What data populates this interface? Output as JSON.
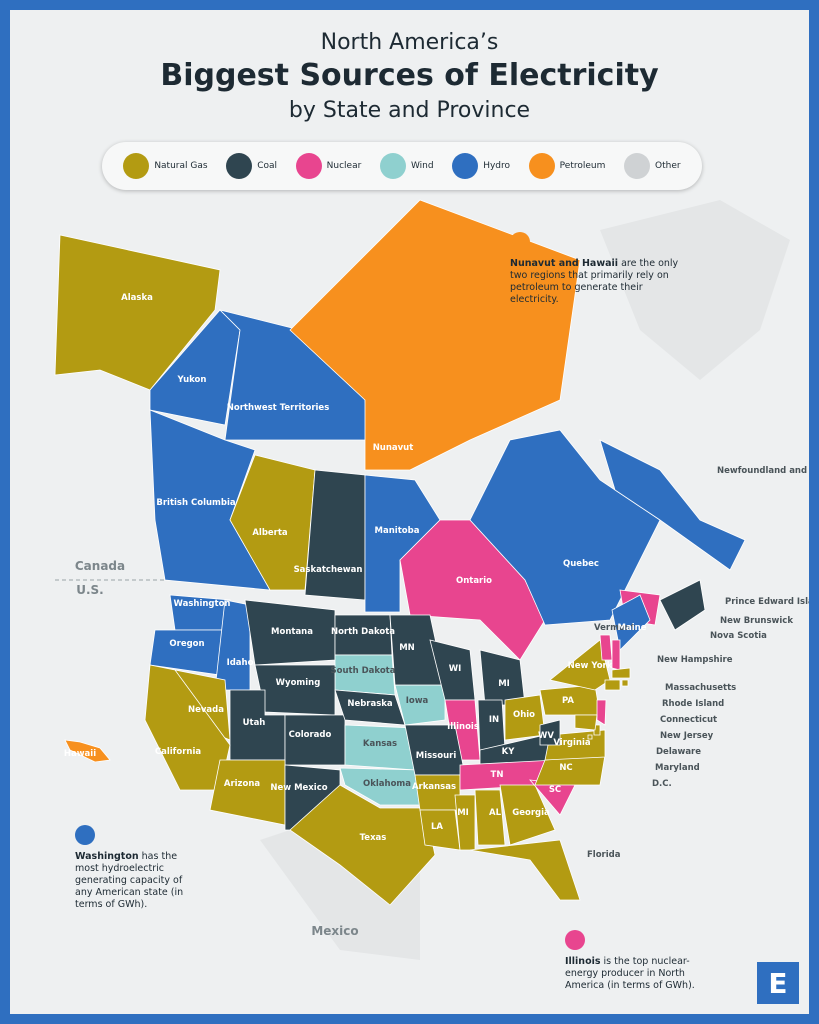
{
  "header": {
    "line1": "North America’s",
    "title": "Biggest Sources of Electricity",
    "line3": "by State and Province"
  },
  "legend": [
    {
      "label": "Natural Gas",
      "color": "#b39b12"
    },
    {
      "label": "Coal",
      "color": "#2f4550"
    },
    {
      "label": "Nuclear",
      "color": "#e8458f"
    },
    {
      "label": "Wind",
      "color": "#8fd0cf"
    },
    {
      "label": "Hydro",
      "color": "#2f6fc0"
    },
    {
      "label": "Petroleum",
      "color": "#f7901e"
    },
    {
      "label": "Other",
      "color": "#cfd2d4"
    }
  ],
  "countries": [
    "Canada",
    "U.S.",
    "Mexico"
  ],
  "regions": [
    {
      "label": "Alaska",
      "source": "Natural Gas"
    },
    {
      "label": "Yukon",
      "source": "Hydro"
    },
    {
      "label": "Northwest Territories",
      "source": "Hydro"
    },
    {
      "label": "Nunavut",
      "source": "Petroleum"
    },
    {
      "label": "British Columbia",
      "source": "Hydro"
    },
    {
      "label": "Alberta",
      "source": "Natural Gas"
    },
    {
      "label": "Saskatchewan",
      "source": "Coal"
    },
    {
      "label": "Manitoba",
      "source": "Hydro"
    },
    {
      "label": "Ontario",
      "source": "Nuclear"
    },
    {
      "label": "Quebec",
      "source": "Hydro"
    },
    {
      "label": "Newfoundland and Labrador",
      "source": "Hydro"
    },
    {
      "label": "Prince Edward Island",
      "source": "Wind"
    },
    {
      "label": "New Brunswick",
      "source": "Nuclear"
    },
    {
      "label": "Nova Scotia",
      "source": "Coal"
    },
    {
      "label": "Washington",
      "source": "Hydro"
    },
    {
      "label": "Oregon",
      "source": "Hydro"
    },
    {
      "label": "Idaho",
      "source": "Hydro"
    },
    {
      "label": "Montana",
      "source": "Coal"
    },
    {
      "label": "North Dakota",
      "source": "Coal"
    },
    {
      "label": "South Dakota",
      "source": "Wind"
    },
    {
      "label": "Wyoming",
      "source": "Coal"
    },
    {
      "label": "Nevada",
      "source": "Natural Gas"
    },
    {
      "label": "Utah",
      "source": "Coal"
    },
    {
      "label": "Colorado",
      "source": "Coal"
    },
    {
      "label": "Nebraska",
      "source": "Coal"
    },
    {
      "label": "Iowa",
      "source": "Wind"
    },
    {
      "label": "Kansas",
      "source": "Wind"
    },
    {
      "label": "California",
      "source": "Natural Gas"
    },
    {
      "label": "Arizona",
      "source": "Natural Gas"
    },
    {
      "label": "New Mexico",
      "source": "Coal"
    },
    {
      "label": "Oklahoma",
      "source": "Wind"
    },
    {
      "label": "Texas",
      "source": "Natural Gas"
    },
    {
      "label": "MN",
      "source": "Coal"
    },
    {
      "label": "WI",
      "source": "Coal"
    },
    {
      "label": "MI",
      "source": "Coal"
    },
    {
      "label": "Illinois",
      "source": "Nuclear"
    },
    {
      "label": "IN",
      "source": "Coal"
    },
    {
      "label": "Ohio",
      "source": "Natural Gas"
    },
    {
      "label": "KY",
      "source": "Coal"
    },
    {
      "label": "Missouri",
      "source": "Coal"
    },
    {
      "label": "Arkansas",
      "source": "Natural Gas"
    },
    {
      "label": "TN",
      "source": "Nuclear"
    },
    {
      "label": "LA",
      "source": "Natural Gas"
    },
    {
      "label": "MI",
      "source": "Natural Gas"
    },
    {
      "label": "AL",
      "source": "Natural Gas"
    },
    {
      "label": "Georgia",
      "source": "Natural Gas"
    },
    {
      "label": "Florida",
      "source": "Natural Gas"
    },
    {
      "label": "SC",
      "source": "Nuclear"
    },
    {
      "label": "NC",
      "source": "Natural Gas"
    },
    {
      "label": "Virginia",
      "source": "Natural Gas"
    },
    {
      "label": "WV",
      "source": "Coal"
    },
    {
      "label": "PA",
      "source": "Natural Gas"
    },
    {
      "label": "New York",
      "source": "Natural Gas"
    },
    {
      "label": "Vermont",
      "source": "Nuclear"
    },
    {
      "label": "Maine",
      "source": "Hydro"
    },
    {
      "label": "New Hampshire",
      "source": "Nuclear"
    },
    {
      "label": "Massachusetts",
      "source": "Natural Gas"
    },
    {
      "label": "Rhode Island",
      "source": "Natural Gas"
    },
    {
      "label": "Connecticut",
      "source": "Natural Gas"
    },
    {
      "label": "New Jersey",
      "source": "Nuclear"
    },
    {
      "label": "Delaware",
      "source": "Natural Gas"
    },
    {
      "label": "Maryland",
      "source": "Natural Gas"
    },
    {
      "label": "D.C.",
      "source": "Natural Gas"
    },
    {
      "label": "Hawaii",
      "source": "Petroleum"
    }
  ],
  "annotations": [
    {
      "bold": "Nunavut and Hawaii",
      "text": "are the only two regions that primarily rely on petroleum to generate their electricity.",
      "source": "Petroleum"
    },
    {
      "bold": "Washington",
      "text": "has the most hydroelectric generating capacity of any American state (in terms of GWh).",
      "source": "Hydro"
    },
    {
      "bold": "Illinois",
      "text": "is the top nuclear-energy producer in North America (in terms of GWh).",
      "source": "Nuclear"
    }
  ],
  "logo": "E"
}
